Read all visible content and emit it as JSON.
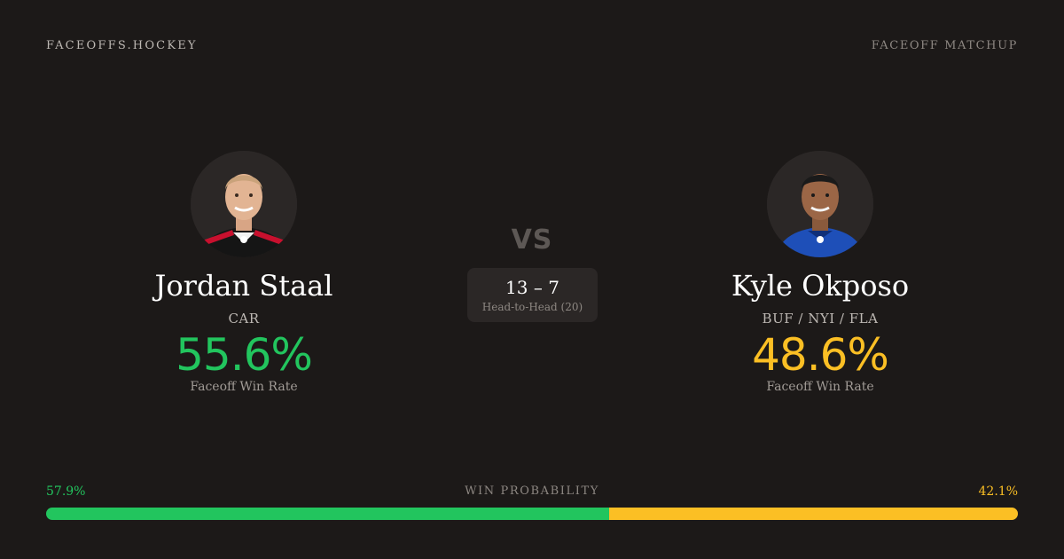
{
  "header": {
    "brand": "FACEOFFS.HOCKEY",
    "page_label": "FACEOFF MATCHUP"
  },
  "vs_label": "VS",
  "head_to_head": {
    "score": "13 – 7",
    "label": "Head-to-Head (20)"
  },
  "players": {
    "left": {
      "name": "Jordan Staal",
      "team": "CAR",
      "win_rate": "55.6%",
      "win_rate_label": "Faceoff Win Rate",
      "color": "#22c55e"
    },
    "right": {
      "name": "Kyle Okposo",
      "team": "BUF / NYI / FLA",
      "win_rate": "48.6%",
      "win_rate_label": "Faceoff Win Rate",
      "color": "#fbbf24"
    }
  },
  "win_probability": {
    "title": "WIN PROBABILITY",
    "left_label": "57.9%",
    "right_label": "42.1%",
    "left_fraction": 0.579,
    "right_fraction": 0.421
  }
}
